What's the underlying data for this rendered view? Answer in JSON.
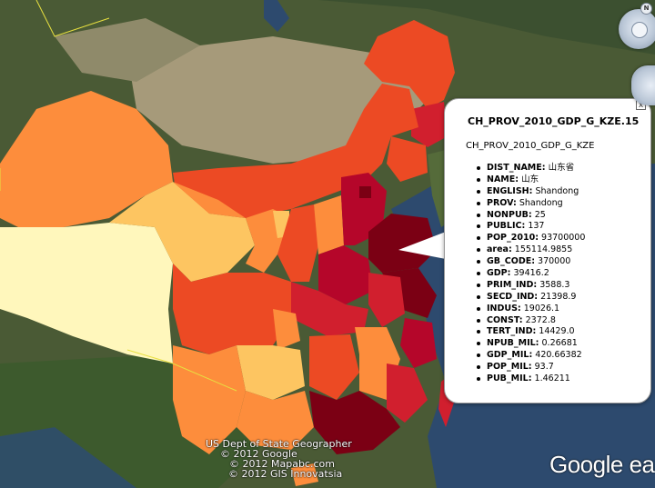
{
  "popup": {
    "close_label": "x",
    "title": "CH_PROV_2010_GDP_G_KZE.15",
    "subtitle": "CH_PROV_2010_GDP_G_KZE",
    "attributes": [
      {
        "key": "DIST_NAME:",
        "value": "山东省"
      },
      {
        "key": "NAME:",
        "value": "山东"
      },
      {
        "key": "ENGLISH:",
        "value": "Shandong"
      },
      {
        "key": "PROV:",
        "value": "Shandong"
      },
      {
        "key": "NONPUB:",
        "value": "25"
      },
      {
        "key": "PUBLIC:",
        "value": "137"
      },
      {
        "key": "POP_2010:",
        "value": "93700000"
      },
      {
        "key": "area:",
        "value": "155114.9855"
      },
      {
        "key": "GB_CODE:",
        "value": "370000"
      },
      {
        "key": "GDP:",
        "value": "39416.2"
      },
      {
        "key": "PRIM_IND:",
        "value": "3588.3"
      },
      {
        "key": "SECD_IND:",
        "value": "21398.9"
      },
      {
        "key": "INDUS:",
        "value": "19026.1"
      },
      {
        "key": "CONST:",
        "value": "2372.8"
      },
      {
        "key": "TERT_IND:",
        "value": "14429.0"
      },
      {
        "key": "NPUB_MIL:",
        "value": "0.26681"
      },
      {
        "key": "GDP_MIL:",
        "value": "420.66382"
      },
      {
        "key": "POP_MIL:",
        "value": "93.7"
      },
      {
        "key": "PUB_MIL:",
        "value": "1.46211"
      }
    ]
  },
  "navigation": {
    "north_label": "N"
  },
  "credits": [
    "US Dept of State Geographer",
    "© 2012 Google",
    "© 2012 Mapabc.com",
    "© 2012 GIS Innovatsia"
  ],
  "logo_text": "Google earth",
  "colors": {
    "class_lightest": "#fff7bc",
    "class_light": "#fdc561",
    "class_orange": "#fd8d3c",
    "class_redorange": "#ec4a24",
    "class_red": "#d11f2e",
    "class_crimson": "#b5062a",
    "class_darkest": "#7b0014",
    "sea": "#2d4a6e"
  }
}
